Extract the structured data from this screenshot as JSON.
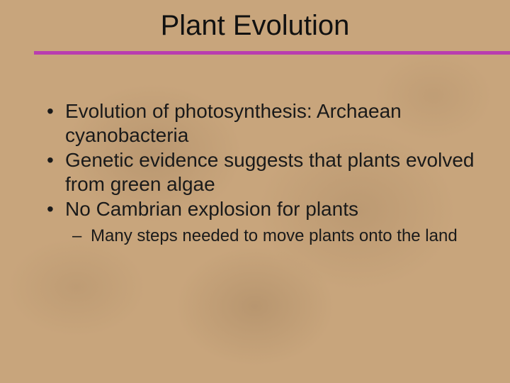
{
  "slide": {
    "title": "Plant Evolution",
    "rule_color": "#b93daf",
    "background_color": "#c8a57c",
    "text_color": "#1a1a1a",
    "title_fontsize": 40,
    "bullet_fontsize": 28,
    "subbullet_fontsize": 24,
    "bullets": [
      {
        "text": "Evolution of photosynthesis:  Archaean cyanobacteria"
      },
      {
        "text": "Genetic evidence suggests that plants evolved from green algae"
      },
      {
        "text": "No Cambrian explosion for plants",
        "sub": [
          {
            "text": "Many steps needed to move plants onto the land"
          }
        ]
      }
    ]
  }
}
